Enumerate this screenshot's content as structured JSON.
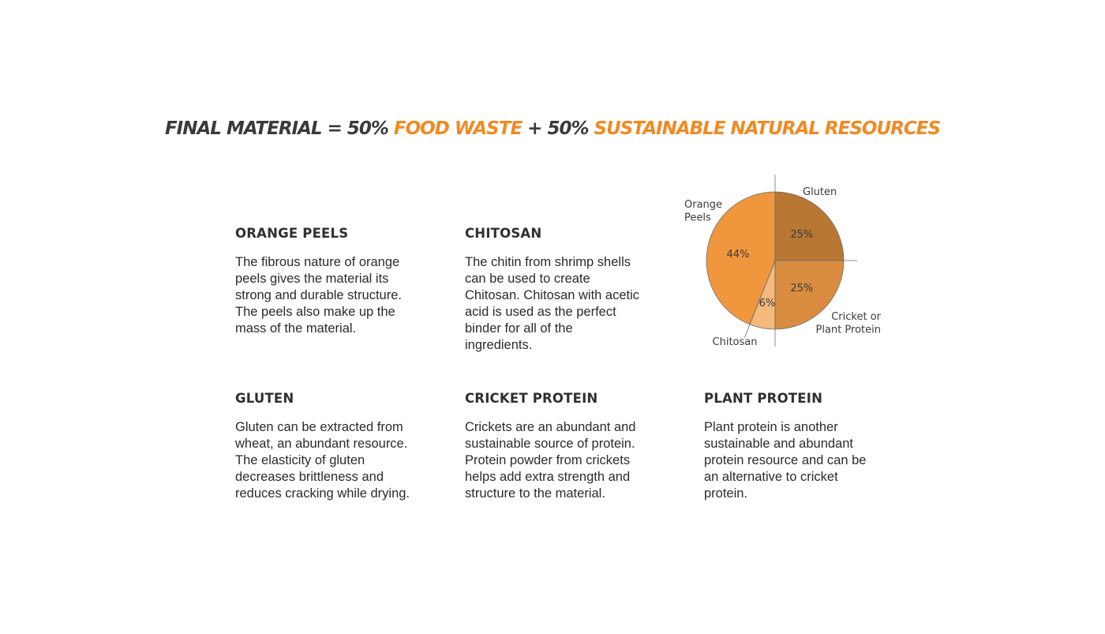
{
  "headline": {
    "part1": "FINAL MATERIAL = 50% ",
    "part2": "FOOD WASTE",
    "part3": " + 50% ",
    "part4": "SUSTAINABLE NATURAL RESOURCES"
  },
  "ingredients": {
    "orange_peels": {
      "title": "ORANGE PEELS",
      "text": "The fibrous nature of orange peels gives the material its strong and durable structure. The peels also make up the mass of the material."
    },
    "chitosan": {
      "title": "CHITOSAN",
      "text": "The chitin from shrimp shells can be used to create Chitosan. Chitosan with acetic acid is used as the perfect binder for all of the ingredients."
    },
    "gluten": {
      "title": "GLUTEN",
      "text": "Gluten can be extracted from wheat, an abundant resource. The elasticity of gluten decreases brittleness and reduces cracking while drying."
    },
    "cricket_protein": {
      "title": "CRICKET PROTEIN",
      "text": "Crickets are an abundant and sustainable source of protein. Protein powder from crickets helps add extra strength and structure to the material."
    },
    "plant_protein": {
      "title": "PLANT PROTEIN",
      "text": "Plant protein is another sustainable and abundant protein resource and can be an alternative to cricket protein."
    }
  },
  "colors": {
    "accent": "#f08a24",
    "text": "#2b2b2b"
  },
  "chart_data": {
    "type": "pie",
    "slices": [
      {
        "label_lines": [
          "Gluten"
        ],
        "value": 25,
        "display": "25%",
        "color": "#b87733"
      },
      {
        "label_lines": [
          "Cricket or",
          "Plant Protein"
        ],
        "value": 25,
        "display": "25%",
        "color": "#d98c40"
      },
      {
        "label_lines": [
          "Chitosan"
        ],
        "value": 6,
        "display": "6%",
        "color": "#f5b97c"
      },
      {
        "label_lines": [
          "Orange",
          "Peels"
        ],
        "value": 44,
        "display": "44%",
        "color": "#f0973e"
      }
    ]
  }
}
